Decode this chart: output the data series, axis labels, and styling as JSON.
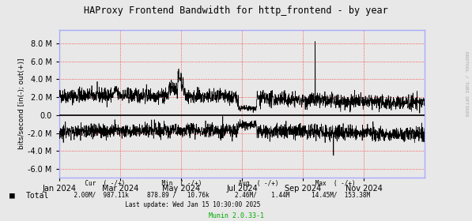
{
  "title": "HAProxy Frontend Bandwidth for http_frontend - by year",
  "ylabel": "bits/second [in(-); out(+)]",
  "background_color": "#e8e8e8",
  "plot_bg_color": "#e8e8e8",
  "line_color": "#000000",
  "zero_line_color": "#000000",
  "yticks": [
    -6000000,
    -4000000,
    -2000000,
    0.0,
    2000000,
    4000000,
    6000000,
    8000000
  ],
  "ytick_labels": [
    "-6.0 M",
    "-4.0 M",
    "-2.0 M",
    "0.0",
    "2.0 M",
    "4.0 M",
    "6.0 M",
    "8.0 M"
  ],
  "xticklabels": [
    "Jan 2024",
    "Mar 2024",
    "May 2024",
    "Jul 2024",
    "Sep 2024",
    "Nov 2024"
  ],
  "legend_label": "Total",
  "munin_version": "Munin 2.0.33-1",
  "right_label": "RRDTOOL / TOBI OETIKER",
  "ylim_min": -7000000,
  "ylim_max": 9500000,
  "xlim_min": 0,
  "xlim_max": 525600
}
